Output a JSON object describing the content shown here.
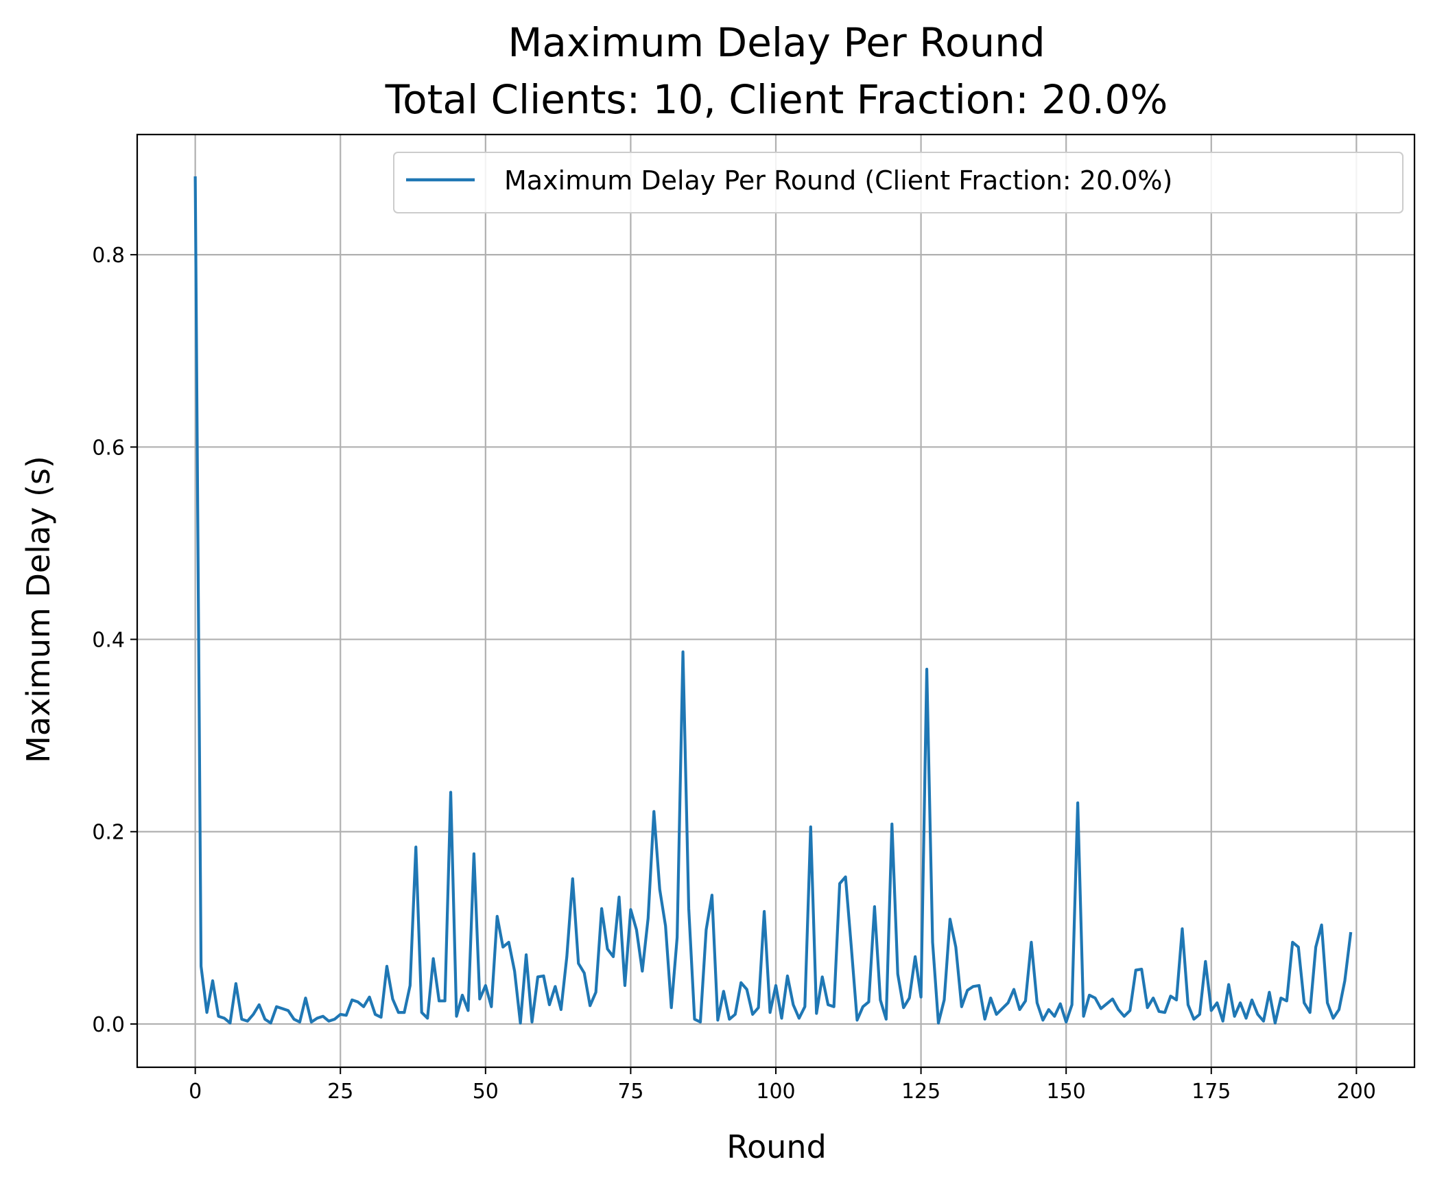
{
  "chart_data": {
    "type": "line",
    "title": "Maximum Delay Per Round",
    "subtitle": "Total Clients: 10, Client Fraction: 20.0%",
    "xlabel": "Round",
    "ylabel": "Maximum Delay (s)",
    "xlim": [
      -10,
      210
    ],
    "ylim": [
      -0.045,
      0.925
    ],
    "xticks": [
      0,
      25,
      50,
      75,
      100,
      125,
      150,
      175,
      200
    ],
    "xtick_labels": [
      "0",
      "25",
      "50",
      "75",
      "100",
      "125",
      "150",
      "175",
      "200"
    ],
    "yticks": [
      0.0,
      0.2,
      0.4,
      0.6,
      0.8
    ],
    "ytick_labels": [
      "0.0",
      "0.2",
      "0.4",
      "0.6",
      "0.8"
    ],
    "grid": true,
    "legend_position": "top-right",
    "series": [
      {
        "name": "Maximum Delay Per Round (Client Fraction: 20.0%)",
        "color": "#1f77b4",
        "x": [
          0,
          1,
          2,
          3,
          4,
          5,
          6,
          7,
          8,
          9,
          10,
          11,
          12,
          13,
          14,
          15,
          16,
          17,
          18,
          19,
          20,
          21,
          22,
          23,
          24,
          25,
          26,
          27,
          28,
          29,
          30,
          31,
          32,
          33,
          34,
          35,
          36,
          37,
          38,
          39,
          40,
          41,
          42,
          43,
          44,
          45,
          46,
          47,
          48,
          49,
          50,
          51,
          52,
          53,
          54,
          55,
          56,
          57,
          58,
          59,
          60,
          61,
          62,
          63,
          64,
          65,
          66,
          67,
          68,
          69,
          70,
          71,
          72,
          73,
          74,
          75,
          76,
          77,
          78,
          79,
          80,
          81,
          82,
          83,
          84,
          85,
          86,
          87,
          88,
          89,
          90,
          91,
          92,
          93,
          94,
          95,
          96,
          97,
          98,
          99,
          100,
          101,
          102,
          103,
          104,
          105,
          106,
          107,
          108,
          109,
          110,
          111,
          112,
          113,
          114,
          115,
          116,
          117,
          118,
          119,
          120,
          121,
          122,
          123,
          124,
          125,
          126,
          127,
          128,
          129,
          130,
          131,
          132,
          133,
          134,
          135,
          136,
          137,
          138,
          139,
          140,
          141,
          142,
          143,
          144,
          145,
          146,
          147,
          148,
          149,
          150,
          151,
          152,
          153,
          154,
          155,
          156,
          157,
          158,
          159,
          160,
          161,
          162,
          163,
          164,
          165,
          166,
          167,
          168,
          169,
          170,
          171,
          172,
          173,
          174,
          175,
          176,
          177,
          178,
          179,
          180,
          181,
          182,
          183,
          184,
          185,
          186,
          187,
          188,
          189,
          190,
          191,
          192,
          193,
          194,
          195,
          196,
          197,
          198,
          199
        ],
        "values": [
          0.88,
          0.06,
          0.012,
          0.045,
          0.008,
          0.006,
          0.001,
          0.042,
          0.005,
          0.003,
          0.01,
          0.02,
          0.005,
          0.001,
          0.018,
          0.016,
          0.014,
          0.005,
          0.002,
          0.027,
          0.002,
          0.006,
          0.008,
          0.003,
          0.005,
          0.01,
          0.009,
          0.025,
          0.023,
          0.018,
          0.028,
          0.01,
          0.007,
          0.06,
          0.026,
          0.012,
          0.012,
          0.04,
          0.184,
          0.012,
          0.006,
          0.068,
          0.024,
          0.024,
          0.241,
          0.008,
          0.03,
          0.014,
          0.177,
          0.026,
          0.04,
          0.018,
          0.112,
          0.08,
          0.085,
          0.055,
          0.001,
          0.072,
          0.002,
          0.049,
          0.05,
          0.02,
          0.039,
          0.015,
          0.07,
          0.151,
          0.063,
          0.053,
          0.019,
          0.033,
          0.12,
          0.078,
          0.07,
          0.132,
          0.04,
          0.119,
          0.098,
          0.055,
          0.11,
          0.221,
          0.14,
          0.102,
          0.017,
          0.09,
          0.387,
          0.12,
          0.005,
          0.002,
          0.098,
          0.134,
          0.004,
          0.034,
          0.005,
          0.01,
          0.043,
          0.036,
          0.01,
          0.017,
          0.117,
          0.012,
          0.04,
          0.006,
          0.05,
          0.02,
          0.006,
          0.018,
          0.205,
          0.011,
          0.049,
          0.02,
          0.018,
          0.146,
          0.153,
          0.08,
          0.004,
          0.018,
          0.023,
          0.122,
          0.025,
          0.005,
          0.208,
          0.052,
          0.017,
          0.027,
          0.07,
          0.028,
          0.369,
          0.085,
          0.001,
          0.025,
          0.109,
          0.08,
          0.018,
          0.035,
          0.039,
          0.04,
          0.005,
          0.027,
          0.01,
          0.016,
          0.022,
          0.036,
          0.015,
          0.024,
          0.085,
          0.022,
          0.004,
          0.015,
          0.008,
          0.021,
          0.002,
          0.02,
          0.23,
          0.008,
          0.03,
          0.027,
          0.016,
          0.021,
          0.026,
          0.015,
          0.008,
          0.014,
          0.056,
          0.057,
          0.017,
          0.027,
          0.013,
          0.012,
          0.029,
          0.025,
          0.099,
          0.02,
          0.005,
          0.01,
          0.065,
          0.014,
          0.022,
          0.003,
          0.041,
          0.008,
          0.022,
          0.006,
          0.025,
          0.01,
          0.003,
          0.033,
          0.001,
          0.027,
          0.024,
          0.085,
          0.08,
          0.022,
          0.012,
          0.08,
          0.103,
          0.022,
          0.006,
          0.015,
          0.045,
          0.094
        ]
      }
    ]
  }
}
